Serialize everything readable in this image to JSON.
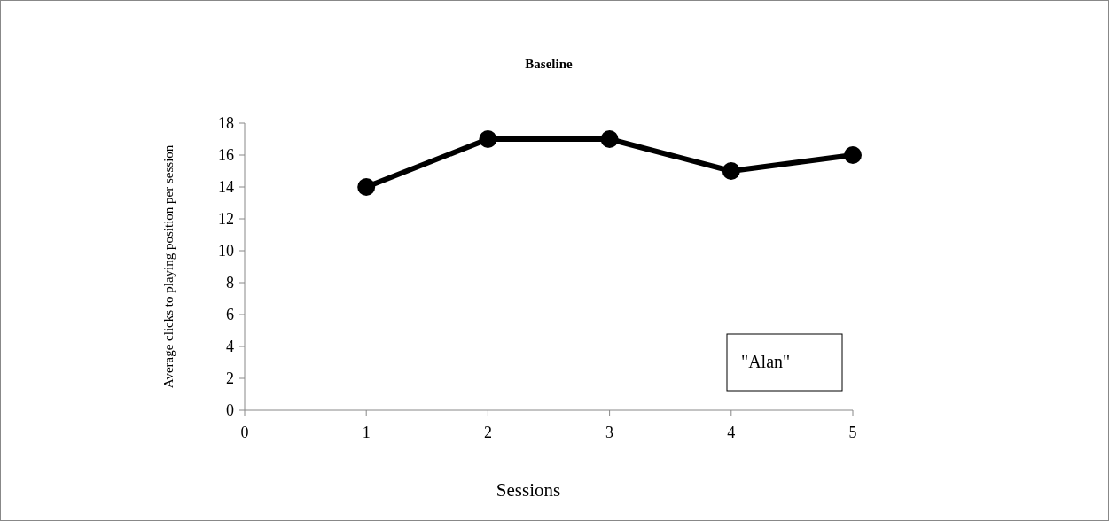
{
  "chart_data": {
    "type": "line",
    "title": "Baseline",
    "xlabel": "Sessions",
    "ylabel": "Average clicks to playing position per session",
    "x": [
      1,
      2,
      3,
      4,
      5
    ],
    "series": [
      {
        "color": "#000000",
        "values": [
          14,
          17,
          17,
          15,
          16
        ]
      }
    ],
    "xlim": [
      0,
      5
    ],
    "xticks": [
      0,
      1,
      2,
      3,
      4,
      5
    ],
    "ylim": [
      0,
      18
    ],
    "yticks": [
      0,
      2,
      4,
      6,
      8,
      10,
      12,
      14,
      16,
      18
    ],
    "marker": "circle",
    "line_style": "solid",
    "grid": false,
    "annotations": [
      "\"Alan\""
    ]
  }
}
